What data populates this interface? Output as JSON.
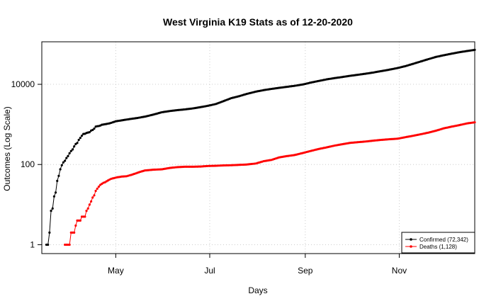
{
  "chart_data": {
    "type": "line",
    "title": "West Virginia K19 Stats as of 12-20-2020",
    "xlabel": "Days",
    "ylabel": "Outcomes (Log Scale)",
    "y_scale": "log",
    "grid": true,
    "legend_position": "bottom-right",
    "x_ticks": [
      {
        "date": "2020-05-01",
        "label": "May"
      },
      {
        "date": "2020-07-01",
        "label": "Jul"
      },
      {
        "date": "2020-09-01",
        "label": "Sep"
      },
      {
        "date": "2020-11-01",
        "label": "Nov"
      }
    ],
    "y_ticks": [
      {
        "value": 1,
        "label": "1"
      },
      {
        "value": 100,
        "label": "100"
      },
      {
        "value": 10000,
        "label": "10000"
      }
    ],
    "x_range": [
      "2020-03-14",
      "2020-12-20"
    ],
    "y_range": [
      0.6,
      115000
    ],
    "series": [
      {
        "name": "Confirmed (72,342)",
        "color": "#000000",
        "points": [
          [
            "2020-03-17",
            1
          ],
          [
            "2020-03-18",
            1
          ],
          [
            "2020-03-19",
            2
          ],
          [
            "2020-03-20",
            7
          ],
          [
            "2020-03-21",
            8
          ],
          [
            "2020-03-22",
            16
          ],
          [
            "2020-03-23",
            20
          ],
          [
            "2020-03-24",
            39
          ],
          [
            "2020-03-25",
            52
          ],
          [
            "2020-03-26",
            76
          ],
          [
            "2020-03-27",
            96
          ],
          [
            "2020-03-28",
            113
          ],
          [
            "2020-03-29",
            124
          ],
          [
            "2020-03-30",
            145
          ],
          [
            "2020-03-31",
            162
          ],
          [
            "2020-04-01",
            191
          ],
          [
            "2020-04-02",
            217
          ],
          [
            "2020-04-03",
            237
          ],
          [
            "2020-04-04",
            282
          ],
          [
            "2020-04-05",
            324
          ],
          [
            "2020-04-06",
            345
          ],
          [
            "2020-04-07",
            412
          ],
          [
            "2020-04-08",
            462
          ],
          [
            "2020-04-09",
            523
          ],
          [
            "2020-04-10",
            577
          ],
          [
            "2020-04-11",
            583
          ],
          [
            "2020-04-12",
            611
          ],
          [
            "2020-04-13",
            626
          ],
          [
            "2020-04-14",
            640
          ],
          [
            "2020-04-15",
            702
          ],
          [
            "2020-04-16",
            728
          ],
          [
            "2020-04-17",
            785
          ],
          [
            "2020-04-18",
            880
          ],
          [
            "2020-04-19",
            902
          ],
          [
            "2020-04-20",
            911
          ],
          [
            "2020-04-21",
            939
          ],
          [
            "2020-04-22",
            981
          ],
          [
            "2020-04-24",
            1010
          ],
          [
            "2020-04-27",
            1063
          ],
          [
            "2020-05-01",
            1195
          ],
          [
            "2020-05-05",
            1265
          ],
          [
            "2020-05-10",
            1358
          ],
          [
            "2020-05-15",
            1446
          ],
          [
            "2020-05-20",
            1566
          ],
          [
            "2020-05-25",
            1741
          ],
          [
            "2020-05-31",
            2014
          ],
          [
            "2020-06-05",
            2153
          ],
          [
            "2020-06-10",
            2273
          ],
          [
            "2020-06-15",
            2370
          ],
          [
            "2020-06-20",
            2506
          ],
          [
            "2020-06-25",
            2694
          ],
          [
            "2020-06-30",
            2923
          ],
          [
            "2020-07-05",
            3231
          ],
          [
            "2020-07-10",
            3814
          ],
          [
            "2020-07-15",
            4520
          ],
          [
            "2020-07-20",
            5050
          ],
          [
            "2020-07-25",
            5760
          ],
          [
            "2020-07-31",
            6579
          ],
          [
            "2020-08-05",
            7159
          ],
          [
            "2020-08-10",
            7674
          ],
          [
            "2020-08-15",
            8165
          ],
          [
            "2020-08-20",
            8649
          ],
          [
            "2020-08-25",
            9167
          ],
          [
            "2020-08-31",
            10026
          ],
          [
            "2020-09-05",
            11135
          ],
          [
            "2020-09-10",
            12191
          ],
          [
            "2020-09-15",
            13321
          ],
          [
            "2020-09-20",
            14285
          ],
          [
            "2020-09-25",
            15203
          ],
          [
            "2020-09-30",
            16287
          ],
          [
            "2020-10-05",
            17264
          ],
          [
            "2020-10-10",
            18354
          ],
          [
            "2020-10-15",
            19639
          ],
          [
            "2020-10-20",
            21264
          ],
          [
            "2020-10-25",
            22966
          ],
          [
            "2020-10-31",
            25541
          ],
          [
            "2020-11-05",
            28437
          ],
          [
            "2020-11-10",
            32470
          ],
          [
            "2020-11-15",
            37190
          ],
          [
            "2020-11-20",
            42560
          ],
          [
            "2020-11-25",
            48390
          ],
          [
            "2020-11-30",
            53230
          ],
          [
            "2020-12-05",
            58150
          ],
          [
            "2020-12-10",
            63220
          ],
          [
            "2020-12-15",
            67740
          ],
          [
            "2020-12-20",
            72342
          ]
        ]
      },
      {
        "name": "Deaths (1,128)",
        "color": "#ff0000",
        "points": [
          [
            "2020-03-29",
            1
          ],
          [
            "2020-03-30",
            1
          ],
          [
            "2020-03-31",
            1
          ],
          [
            "2020-04-01",
            1
          ],
          [
            "2020-04-02",
            2
          ],
          [
            "2020-04-03",
            2
          ],
          [
            "2020-04-04",
            2
          ],
          [
            "2020-04-05",
            3
          ],
          [
            "2020-04-06",
            4
          ],
          [
            "2020-04-07",
            4
          ],
          [
            "2020-04-08",
            4
          ],
          [
            "2020-04-09",
            5
          ],
          [
            "2020-04-10",
            5
          ],
          [
            "2020-04-11",
            5
          ],
          [
            "2020-04-12",
            7
          ],
          [
            "2020-04-13",
            8
          ],
          [
            "2020-04-14",
            10
          ],
          [
            "2020-04-15",
            12
          ],
          [
            "2020-04-16",
            15
          ],
          [
            "2020-04-17",
            17
          ],
          [
            "2020-04-18",
            22
          ],
          [
            "2020-04-19",
            25
          ],
          [
            "2020-04-20",
            28
          ],
          [
            "2020-04-21",
            31
          ],
          [
            "2020-04-22",
            33
          ],
          [
            "2020-04-23",
            35
          ],
          [
            "2020-04-24",
            36
          ],
          [
            "2020-04-25",
            38
          ],
          [
            "2020-04-26",
            40
          ],
          [
            "2020-04-27",
            42
          ],
          [
            "2020-04-28",
            44
          ],
          [
            "2020-04-30",
            46
          ],
          [
            "2020-05-02",
            48
          ],
          [
            "2020-05-05",
            50
          ],
          [
            "2020-05-08",
            51
          ],
          [
            "2020-05-11",
            55
          ],
          [
            "2020-05-14",
            60
          ],
          [
            "2020-05-17",
            66
          ],
          [
            "2020-05-20",
            71
          ],
          [
            "2020-05-25",
            74
          ],
          [
            "2020-05-31",
            76
          ],
          [
            "2020-06-05",
            82
          ],
          [
            "2020-06-10",
            86
          ],
          [
            "2020-06-15",
            88
          ],
          [
            "2020-06-20",
            88
          ],
          [
            "2020-06-25",
            89
          ],
          [
            "2020-06-30",
            92
          ],
          [
            "2020-07-05",
            93
          ],
          [
            "2020-07-10",
            95
          ],
          [
            "2020-07-15",
            96
          ],
          [
            "2020-07-20",
            98
          ],
          [
            "2020-07-25",
            100
          ],
          [
            "2020-07-31",
            106
          ],
          [
            "2020-08-05",
            121
          ],
          [
            "2020-08-10",
            130
          ],
          [
            "2020-08-15",
            150
          ],
          [
            "2020-08-20",
            162
          ],
          [
            "2020-08-25",
            172
          ],
          [
            "2020-08-31",
            196
          ],
          [
            "2020-09-05",
            220
          ],
          [
            "2020-09-10",
            245
          ],
          [
            "2020-09-15",
            268
          ],
          [
            "2020-09-20",
            296
          ],
          [
            "2020-09-25",
            320
          ],
          [
            "2020-09-30",
            346
          ],
          [
            "2020-10-05",
            360
          ],
          [
            "2020-10-10",
            374
          ],
          [
            "2020-10-15",
            393
          ],
          [
            "2020-10-20",
            410
          ],
          [
            "2020-10-25",
            425
          ],
          [
            "2020-10-31",
            441
          ],
          [
            "2020-11-05",
            480
          ],
          [
            "2020-11-10",
            521
          ],
          [
            "2020-11-15",
            569
          ],
          [
            "2020-11-20",
            625
          ],
          [
            "2020-11-25",
            700
          ],
          [
            "2020-11-30",
            800
          ],
          [
            "2020-12-05",
            880
          ],
          [
            "2020-12-10",
            960
          ],
          [
            "2020-12-15",
            1060
          ],
          [
            "2020-12-20",
            1128
          ]
        ]
      }
    ]
  }
}
